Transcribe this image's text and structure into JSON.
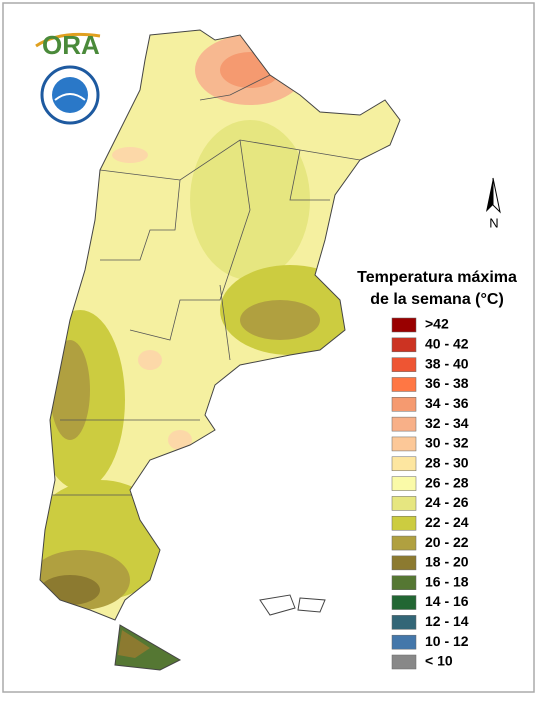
{
  "logo": {
    "text": "ORA"
  },
  "north_arrow": {
    "label": "N"
  },
  "legend": {
    "title_lines": [
      "Temperatura máxima",
      "de la semana (°C)"
    ],
    "items": [
      {
        "label": ">42",
        "color": "#990000"
      },
      {
        "label": "40 - 42",
        "color": "#cc3322"
      },
      {
        "label": "38 - 40",
        "color": "#ee5533"
      },
      {
        "label": "36 - 38",
        "color": "#ff7744"
      },
      {
        "label": "34 - 36",
        "color": "#f59a70"
      },
      {
        "label": "32 - 34",
        "color": "#f8b088"
      },
      {
        "label": "30 - 32",
        "color": "#fcc898"
      },
      {
        "label": "28 - 30",
        "color": "#fde6a0"
      },
      {
        "label": "26 - 28",
        "color": "#fafaa8"
      },
      {
        "label": "24 - 26",
        "color": "#e6e680"
      },
      {
        "label": "22 - 24",
        "color": "#cccc40"
      },
      {
        "label": "20 - 22",
        "color": "#b0a040"
      },
      {
        "label": "18 - 20",
        "color": "#8c7a30"
      },
      {
        "label": "16 - 18",
        "color": "#557733"
      },
      {
        "label": "14 - 16",
        "color": "#226633"
      },
      {
        "label": "12 - 14",
        "color": "#336677"
      },
      {
        "label": "10 - 12",
        "color": "#4477aa"
      },
      {
        "label": "< 10",
        "color": "#888888"
      }
    ]
  }
}
